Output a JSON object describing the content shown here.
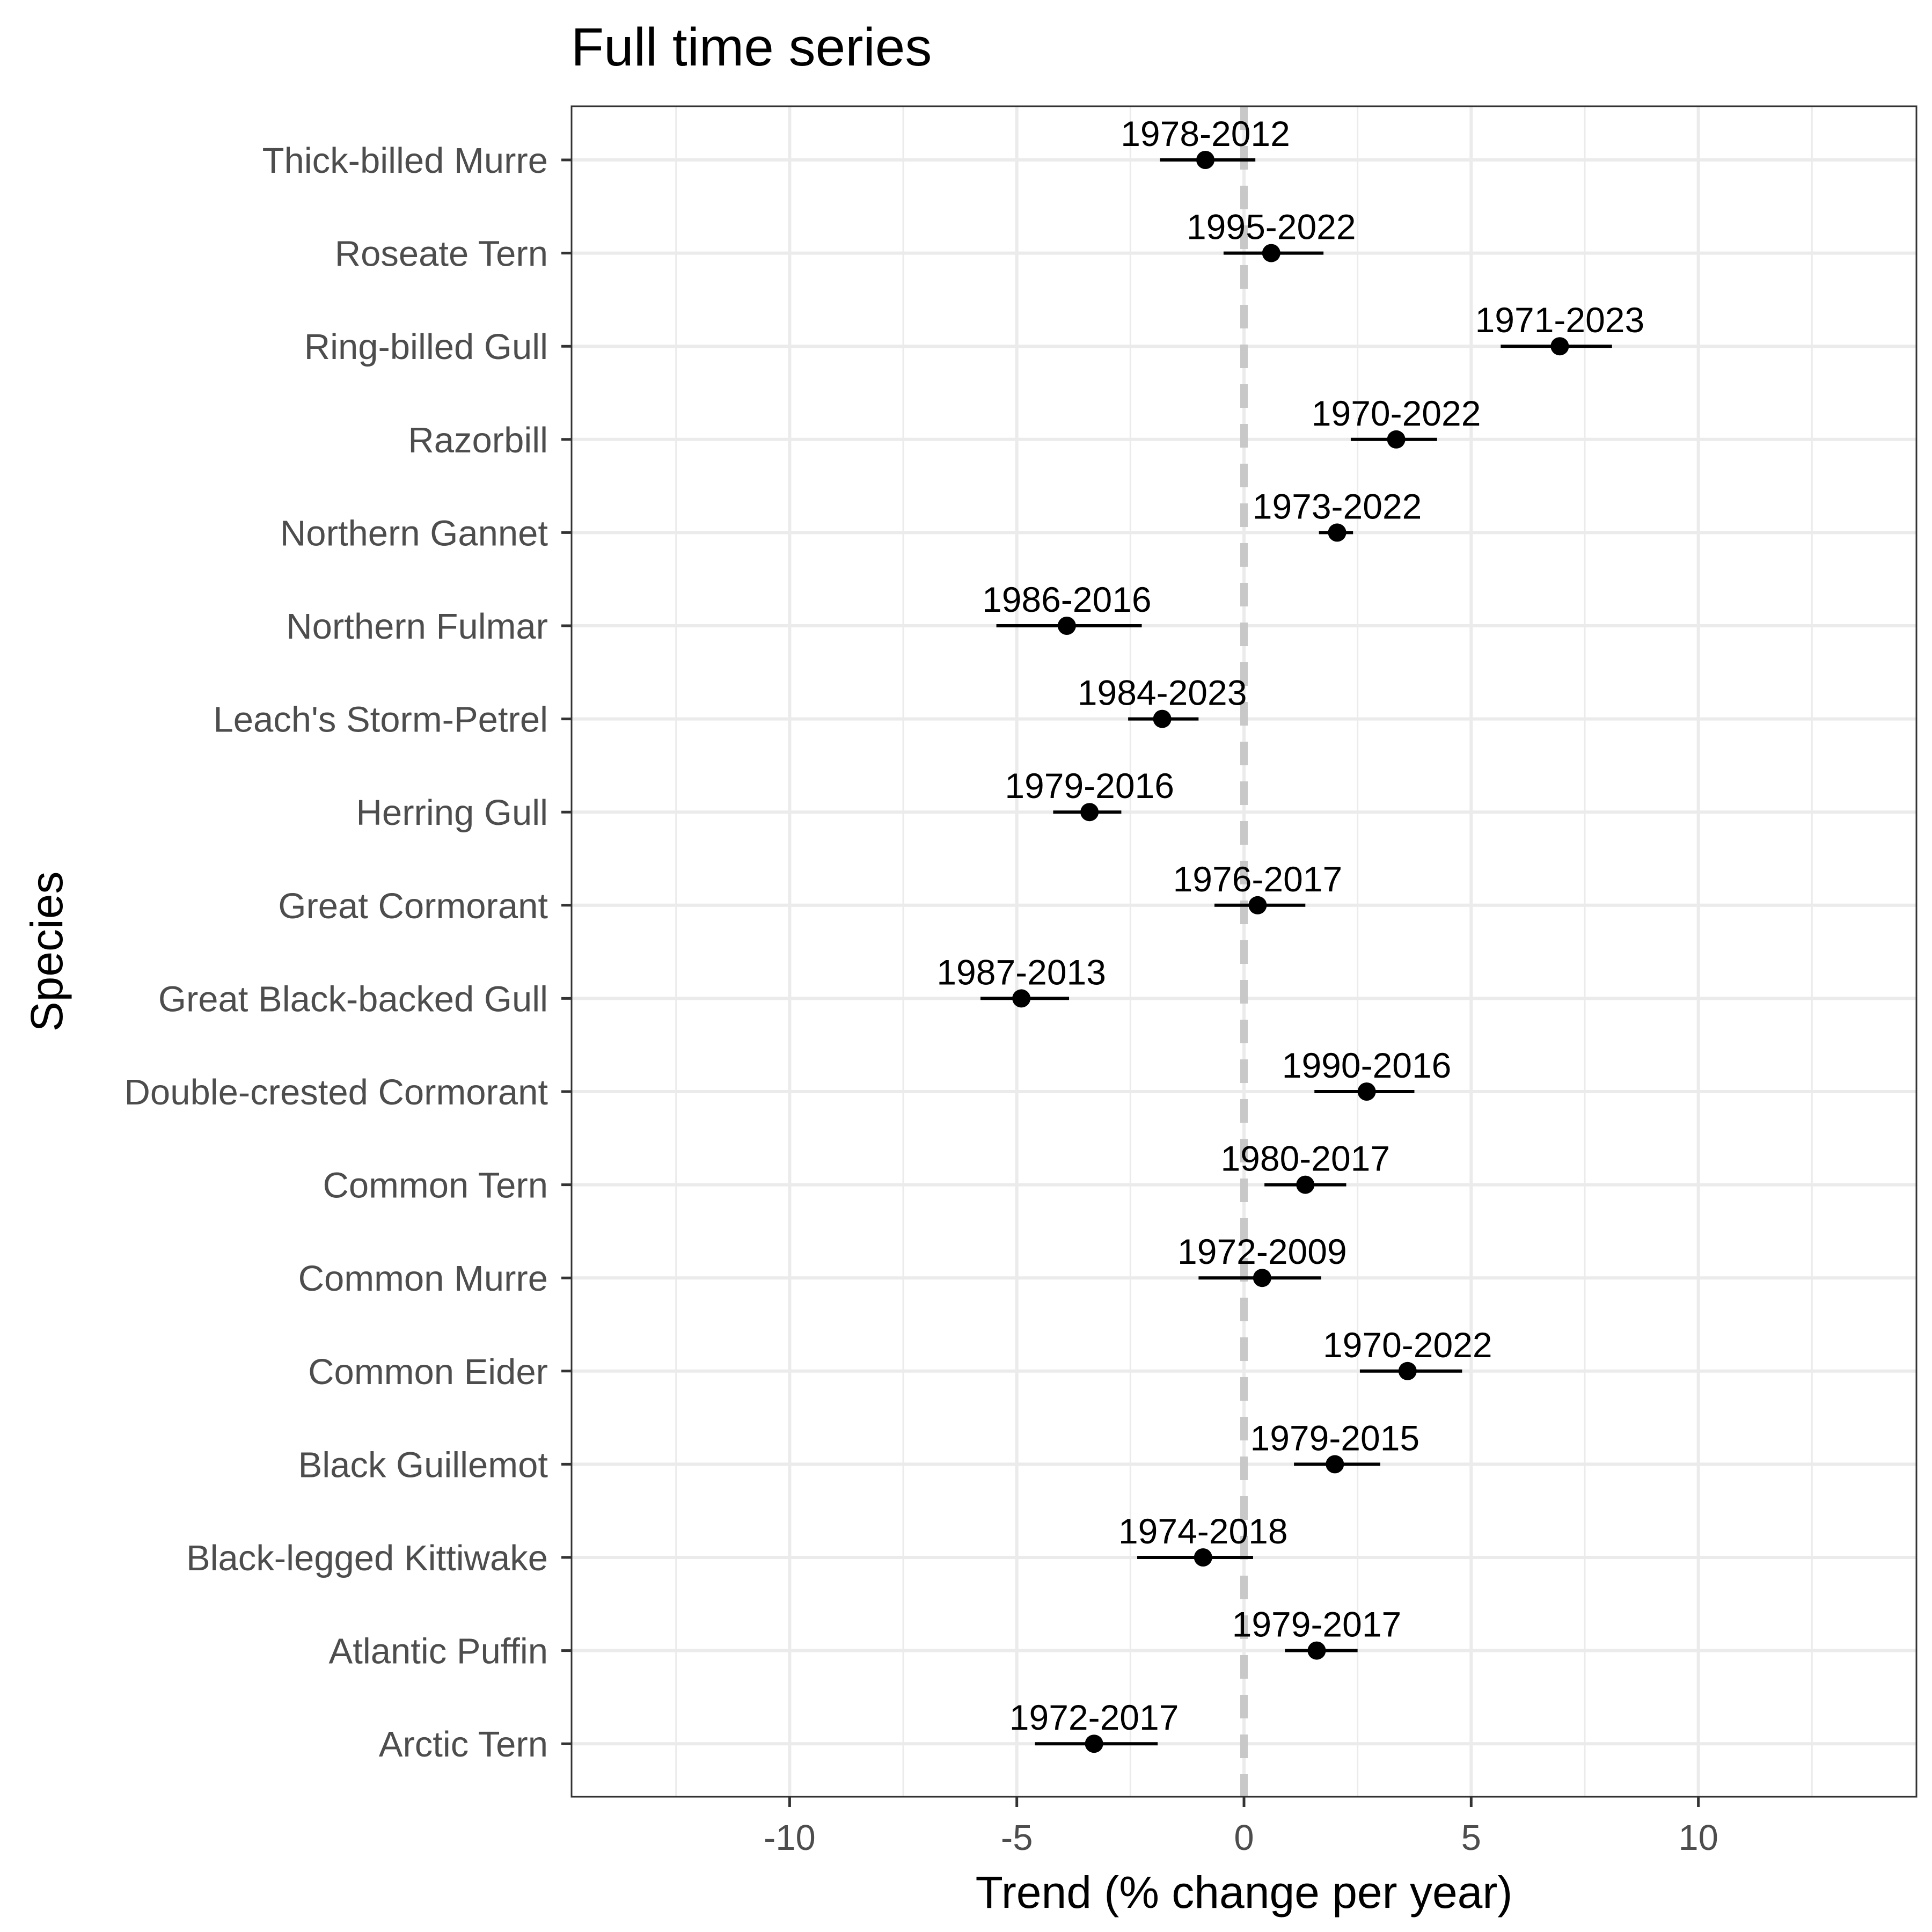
{
  "chart_data": {
    "type": "scatter",
    "title": "Full time series",
    "xlabel": "Trend (% change per year)",
    "ylabel": "Species",
    "xlim": [
      -14.8,
      14.8
    ],
    "x_ticks": [
      -10,
      -5,
      0,
      5,
      10
    ],
    "x_tick_labels": [
      "-10",
      "-5",
      "0",
      "5",
      "10"
    ],
    "grid": true,
    "reference_line": {
      "x": 0,
      "style": "dashed",
      "color": "#c8c8c8"
    },
    "point_color": "#000000",
    "rows": [
      {
        "species": "Thick-billed Murre",
        "period": "1978-2012",
        "estimate": -0.85,
        "lower": -1.85,
        "upper": 0.25
      },
      {
        "species": "Roseate Tern",
        "period": "1995-2022",
        "estimate": 0.6,
        "lower": -0.45,
        "upper": 1.75
      },
      {
        "species": "Ring-billed Gull",
        "period": "1971-2023",
        "estimate": 6.95,
        "lower": 5.65,
        "upper": 8.1
      },
      {
        "species": "Razorbill",
        "period": "1970-2022",
        "estimate": 3.35,
        "lower": 2.35,
        "upper": 4.25
      },
      {
        "species": "Northern Gannet",
        "period": "1973-2022",
        "estimate": 2.05,
        "lower": 1.65,
        "upper": 2.4
      },
      {
        "species": "Northern Fulmar",
        "period": "1986-2016",
        "estimate": -3.9,
        "lower": -5.45,
        "upper": -2.25
      },
      {
        "species": "Leach's Storm-Petrel",
        "period": "1984-2023",
        "estimate": -1.8,
        "lower": -2.55,
        "upper": -1.0
      },
      {
        "species": "Herring Gull",
        "period": "1979-2016",
        "estimate": -3.4,
        "lower": -4.2,
        "upper": -2.7
      },
      {
        "species": "Great Cormorant",
        "period": "1976-2017",
        "estimate": 0.3,
        "lower": -0.65,
        "upper": 1.35
      },
      {
        "species": "Great Black-backed Gull",
        "period": "1987-2013",
        "estimate": -4.9,
        "lower": -5.8,
        "upper": -3.85
      },
      {
        "species": "Double-crested Cormorant",
        "period": "1990-2016",
        "estimate": 2.7,
        "lower": 1.55,
        "upper": 3.75
      },
      {
        "species": "Common Tern",
        "period": "1980-2017",
        "estimate": 1.35,
        "lower": 0.45,
        "upper": 2.25
      },
      {
        "species": "Common Murre",
        "period": "1972-2009",
        "estimate": 0.4,
        "lower": -1.0,
        "upper": 1.7
      },
      {
        "species": "Common Eider",
        "period": "1970-2022",
        "estimate": 3.6,
        "lower": 2.55,
        "upper": 4.8
      },
      {
        "species": "Black Guillemot",
        "period": "1979-2015",
        "estimate": 2.0,
        "lower": 1.1,
        "upper": 3.0
      },
      {
        "species": "Black-legged Kittiwake",
        "period": "1974-2018",
        "estimate": -0.9,
        "lower": -2.35,
        "upper": 0.2
      },
      {
        "species": "Atlantic Puffin",
        "period": "1979-2017",
        "estimate": 1.6,
        "lower": 0.9,
        "upper": 2.5
      },
      {
        "species": "Arctic Tern",
        "period": "1972-2017",
        "estimate": -3.3,
        "lower": -4.6,
        "upper": -1.9
      }
    ]
  }
}
